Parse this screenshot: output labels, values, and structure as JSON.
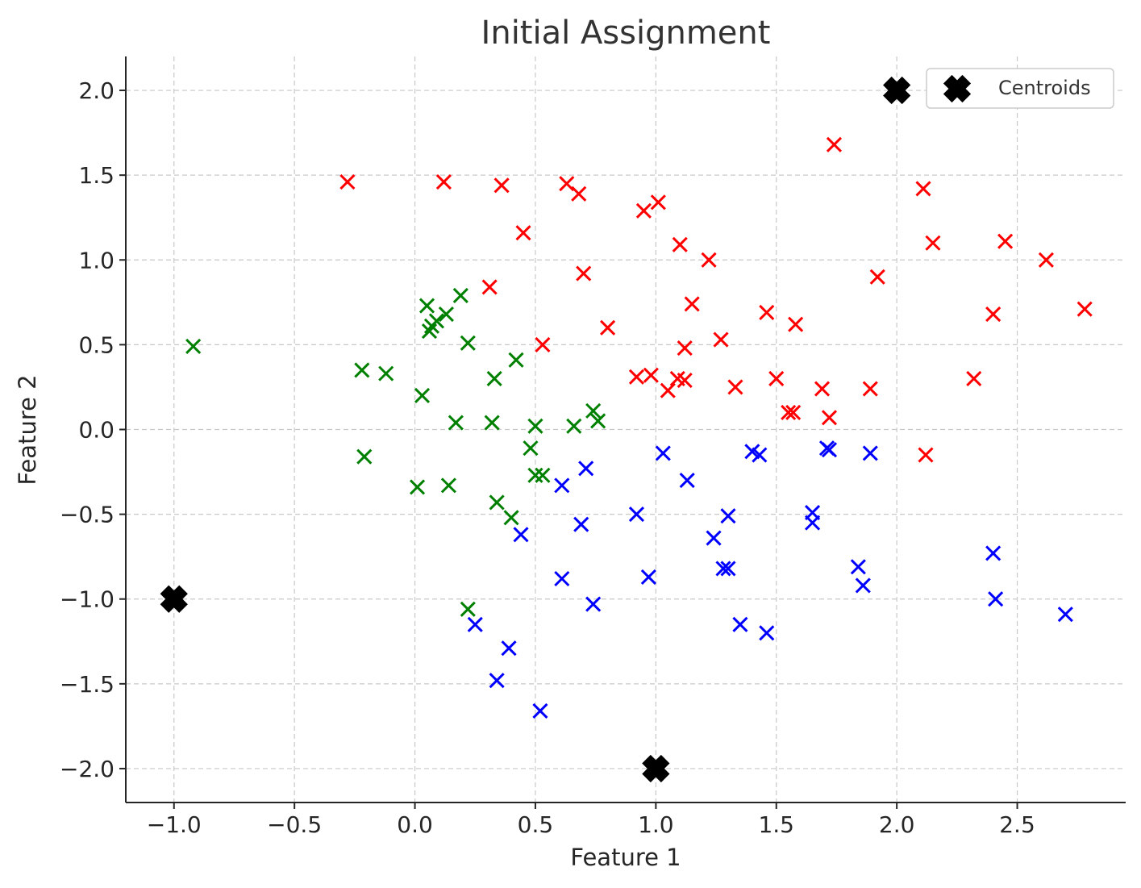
{
  "chart_data": {
    "type": "scatter",
    "title": "Initial Assignment",
    "xlabel": "Feature 1",
    "ylabel": "Feature 2",
    "xlim": [
      -1.2,
      2.95
    ],
    "ylim": [
      -2.2,
      2.2
    ],
    "xticks": [
      -1.0,
      -0.5,
      0.0,
      0.5,
      1.0,
      1.5,
      2.0,
      2.5
    ],
    "xtick_labels": [
      "−1.0",
      "−0.5",
      "0.0",
      "0.5",
      "1.0",
      "1.5",
      "2.0",
      "2.5"
    ],
    "yticks": [
      -2.0,
      -1.5,
      -1.0,
      -0.5,
      0.0,
      0.5,
      1.0,
      1.5,
      2.0
    ],
    "ytick_labels": [
      "−2.0",
      "−1.5",
      "−1.0",
      "−0.5",
      "0.0",
      "0.5",
      "1.0",
      "1.5",
      "2.0"
    ],
    "grid": true,
    "legend_position": "top-right",
    "legend": [
      {
        "label": "Centroids",
        "color": "#000000",
        "marker": "X"
      }
    ],
    "centroids": [
      {
        "x": 2.0,
        "y": 2.0
      },
      {
        "x": -1.0,
        "y": -1.0
      },
      {
        "x": 1.0,
        "y": -2.0
      }
    ],
    "series": [
      {
        "color": "#ff0000",
        "points": [
          [
            -0.28,
            1.46
          ],
          [
            0.12,
            1.46
          ],
          [
            0.36,
            1.44
          ],
          [
            0.63,
            1.45
          ],
          [
            0.68,
            1.39
          ],
          [
            0.45,
            1.16
          ],
          [
            0.31,
            0.84
          ],
          [
            0.7,
            0.92
          ],
          [
            0.8,
            0.6
          ],
          [
            0.53,
            0.5
          ],
          [
            0.95,
            1.29
          ],
          [
            1.01,
            1.34
          ],
          [
            1.1,
            1.09
          ],
          [
            1.22,
            1.0
          ],
          [
            1.15,
            0.74
          ],
          [
            1.12,
            0.48
          ],
          [
            1.27,
            0.53
          ],
          [
            0.92,
            0.31
          ],
          [
            0.98,
            0.32
          ],
          [
            1.05,
            0.23
          ],
          [
            1.09,
            0.3
          ],
          [
            1.12,
            0.29
          ],
          [
            1.33,
            0.25
          ],
          [
            1.46,
            0.69
          ],
          [
            1.58,
            0.62
          ],
          [
            1.5,
            0.3
          ],
          [
            1.55,
            0.1
          ],
          [
            1.57,
            0.1
          ],
          [
            1.69,
            0.24
          ],
          [
            1.72,
            0.07
          ],
          [
            1.74,
            1.68
          ],
          [
            1.89,
            0.24
          ],
          [
            1.92,
            0.9
          ],
          [
            2.11,
            1.42
          ],
          [
            2.15,
            1.1
          ],
          [
            2.12,
            -0.15
          ],
          [
            2.32,
            0.3
          ],
          [
            2.4,
            0.68
          ],
          [
            2.45,
            1.11
          ],
          [
            2.62,
            1.0
          ],
          [
            2.78,
            0.71
          ]
        ]
      },
      {
        "color": "#008000",
        "points": [
          [
            -0.92,
            0.49
          ],
          [
            -0.22,
            0.35
          ],
          [
            -0.12,
            0.33
          ],
          [
            -0.21,
            -0.16
          ],
          [
            0.05,
            0.73
          ],
          [
            0.06,
            0.58
          ],
          [
            0.07,
            0.61
          ],
          [
            0.09,
            0.64
          ],
          [
            0.13,
            0.68
          ],
          [
            0.19,
            0.79
          ],
          [
            0.22,
            0.51
          ],
          [
            0.03,
            0.2
          ],
          [
            0.17,
            0.04
          ],
          [
            0.32,
            0.04
          ],
          [
            0.33,
            0.3
          ],
          [
            0.42,
            0.41
          ],
          [
            0.01,
            -0.34
          ],
          [
            0.14,
            -0.33
          ],
          [
            0.34,
            -0.43
          ],
          [
            0.4,
            -0.52
          ],
          [
            0.48,
            -0.11
          ],
          [
            0.5,
            0.02
          ],
          [
            0.5,
            -0.27
          ],
          [
            0.53,
            -0.27
          ],
          [
            0.66,
            0.02
          ],
          [
            0.74,
            0.11
          ],
          [
            0.76,
            0.05
          ],
          [
            0.22,
            -1.06
          ]
        ]
      },
      {
        "color": "#0000ff",
        "points": [
          [
            0.44,
            -0.62
          ],
          [
            0.61,
            -0.33
          ],
          [
            0.71,
            -0.23
          ],
          [
            0.69,
            -0.56
          ],
          [
            0.61,
            -0.88
          ],
          [
            0.74,
            -1.03
          ],
          [
            0.92,
            -0.5
          ],
          [
            0.97,
            -0.87
          ],
          [
            1.03,
            -0.14
          ],
          [
            1.13,
            -0.3
          ],
          [
            1.24,
            -0.64
          ],
          [
            1.28,
            -0.82
          ],
          [
            1.3,
            -0.82
          ],
          [
            1.3,
            -0.51
          ],
          [
            1.35,
            -1.15
          ],
          [
            1.4,
            -0.13
          ],
          [
            1.43,
            -0.15
          ],
          [
            1.46,
            -1.2
          ],
          [
            1.65,
            -0.49
          ],
          [
            1.65,
            -0.55
          ],
          [
            1.71,
            -0.11
          ],
          [
            1.72,
            -0.12
          ],
          [
            1.84,
            -0.81
          ],
          [
            1.86,
            -0.92
          ],
          [
            1.89,
            -0.14
          ],
          [
            2.4,
            -0.73
          ],
          [
            2.41,
            -1.0
          ],
          [
            2.7,
            -1.09
          ],
          [
            0.25,
            -1.15
          ],
          [
            0.39,
            -1.29
          ],
          [
            0.34,
            -1.48
          ],
          [
            0.52,
            -1.66
          ]
        ]
      }
    ]
  }
}
